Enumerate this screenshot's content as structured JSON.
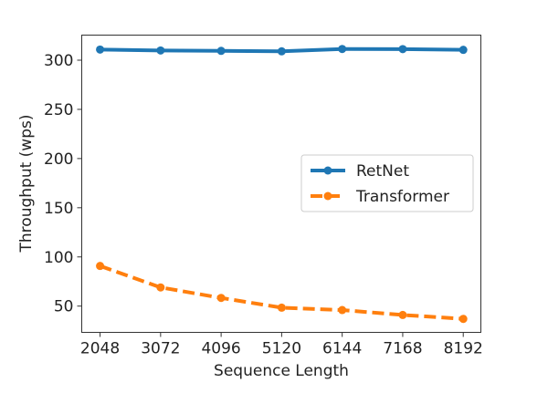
{
  "chart_data": {
    "type": "line",
    "xlabel": "Sequence Length",
    "ylabel": "Throughput (wps)",
    "x": [
      2048,
      3072,
      4096,
      5120,
      6144,
      7168,
      8192
    ],
    "xticks": [
      "2048",
      "3072",
      "4096",
      "5120",
      "6144",
      "7168",
      "8192"
    ],
    "yticks": [
      50,
      100,
      150,
      200,
      250,
      300
    ],
    "xlim": [
      1738,
      8490
    ],
    "ylim": [
      23.3,
      325.5
    ],
    "grid": false,
    "legend_position": "center-right",
    "series": [
      {
        "name": "RetNet",
        "values": [
          310.8,
          309.9,
          309.5,
          309.0,
          311.4,
          311.3,
          310.5
        ],
        "color": "#1f77b4",
        "style": "solid",
        "marker": "circle"
      },
      {
        "name": "Transformer",
        "values": [
          90.8,
          69.0,
          58.3,
          48.4,
          46.0,
          41.0,
          37.0
        ],
        "color": "#ff7f0e",
        "style": "dashed",
        "marker": "circle"
      }
    ]
  }
}
